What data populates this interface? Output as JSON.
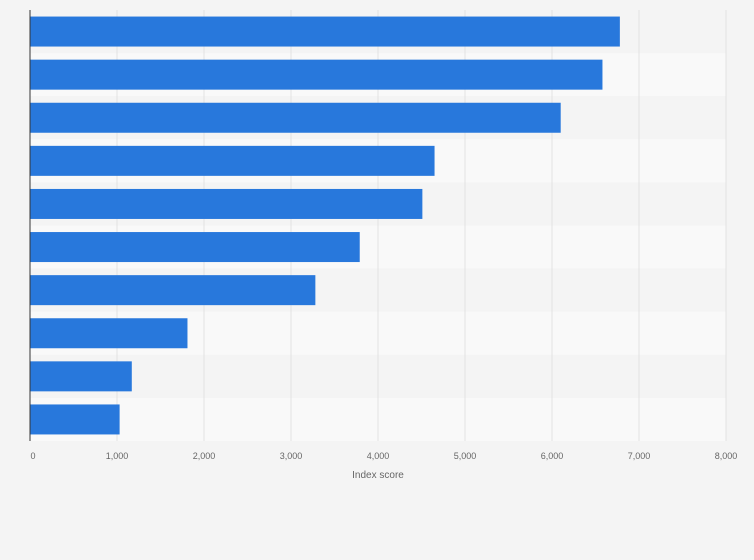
{
  "chart_data": {
    "type": "bar",
    "orientation": "horizontal",
    "title": "",
    "xlabel": "Index score",
    "ylabel": "",
    "xlim": [
      0,
      8000
    ],
    "xticks": [
      0,
      1000,
      2000,
      3000,
      4000,
      5000,
      6000,
      7000,
      8000
    ],
    "xtick_labels": [
      "0",
      "1,000",
      "2,000",
      "3,000",
      "4,000",
      "5,000",
      "6,000",
      "7,000",
      "8,000"
    ],
    "categories": [
      "",
      "",
      "",
      "",
      "",
      "",
      "",
      "",
      "",
      ""
    ],
    "values": [
      6780,
      6580,
      6100,
      4650,
      4510,
      3790,
      3280,
      1810,
      1170,
      1030
    ],
    "grid": true,
    "legend": "none",
    "colors": {
      "bar": "#2878dc",
      "background": "#f4f4f4",
      "band_light": "#f9f9f9",
      "band_dark": "#f4f4f4",
      "gridline": "#e2e2e2",
      "axis": "#333333",
      "text": "#666666"
    }
  }
}
